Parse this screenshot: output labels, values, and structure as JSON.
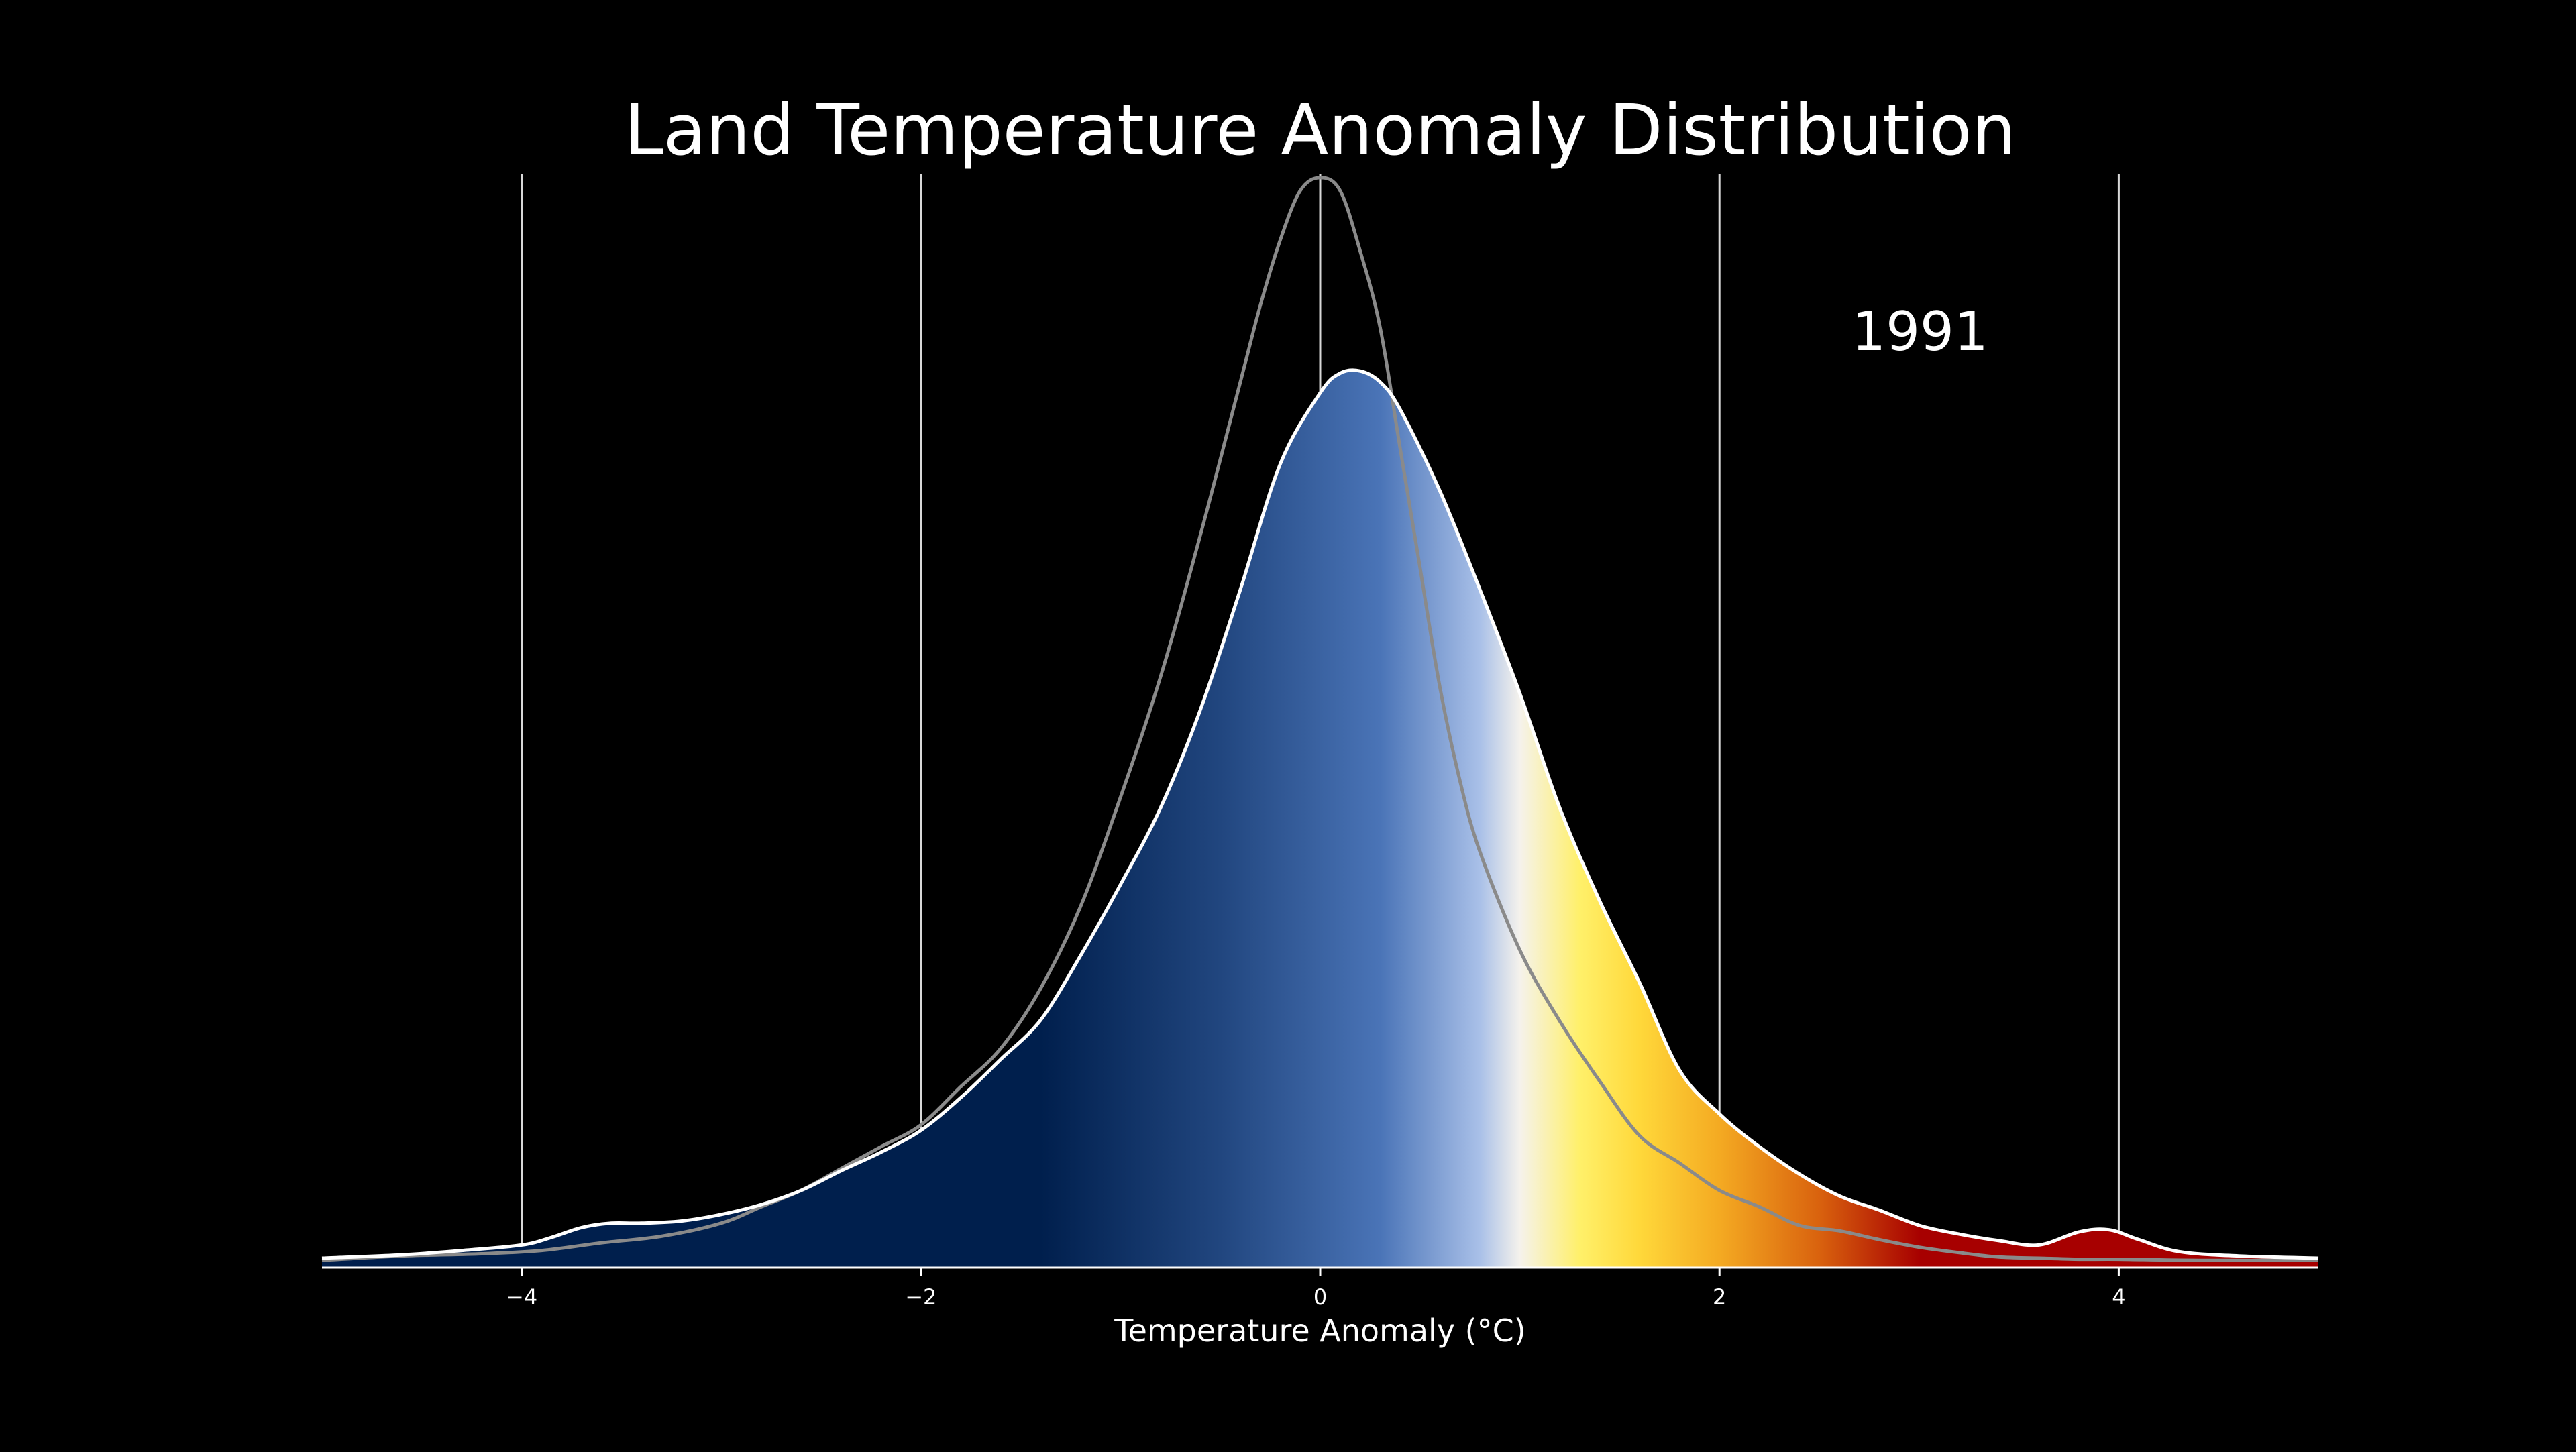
{
  "chart_data": {
    "type": "area",
    "title": "Land Temperature Anomaly Distribution",
    "xlabel": "Temperature Anomaly (°C)",
    "ylabel": "",
    "annotation": "1991",
    "xlim": [
      -5,
      5
    ],
    "ylim": [
      0,
      1.0
    ],
    "grid": "vertical lines at major ticks",
    "xticks": [
      {
        "value": -4,
        "label": "−4"
      },
      {
        "value": -2,
        "label": "−2"
      },
      {
        "value": 0,
        "label": "0"
      },
      {
        "value": 2,
        "label": "2"
      },
      {
        "value": 4,
        "label": "4"
      }
    ],
    "series": [
      {
        "role": "current-year-distribution",
        "fill": "diverging-gradient",
        "stroke": "#ffffff",
        "x": [
          -5.0,
          -4.6,
          -4.3,
          -4.0,
          -3.85,
          -3.7,
          -3.55,
          -3.4,
          -3.2,
          -3.0,
          -2.8,
          -2.6,
          -2.4,
          -2.2,
          -2.0,
          -1.8,
          -1.6,
          -1.4,
          -1.2,
          -1.0,
          -0.8,
          -0.6,
          -0.4,
          -0.2,
          0.0,
          0.1,
          0.2,
          0.3,
          0.4,
          0.6,
          0.8,
          1.0,
          1.2,
          1.4,
          1.6,
          1.8,
          2.0,
          2.2,
          2.4,
          2.6,
          2.8,
          3.0,
          3.2,
          3.4,
          3.6,
          3.8,
          3.95,
          4.1,
          4.3,
          4.6,
          5.0
        ],
        "y": [
          0.008,
          0.011,
          0.015,
          0.02,
          0.027,
          0.036,
          0.04,
          0.04,
          0.042,
          0.048,
          0.057,
          0.07,
          0.088,
          0.105,
          0.125,
          0.155,
          0.19,
          0.226,
          0.285,
          0.35,
          0.42,
          0.51,
          0.62,
          0.735,
          0.8,
          0.818,
          0.82,
          0.81,
          0.785,
          0.71,
          0.62,
          0.525,
          0.42,
          0.335,
          0.26,
          0.18,
          0.14,
          0.11,
          0.085,
          0.065,
          0.052,
          0.038,
          0.03,
          0.024,
          0.02,
          0.032,
          0.034,
          0.025,
          0.014,
          0.01,
          0.008
        ]
      },
      {
        "role": "baseline-distribution",
        "fill": "none",
        "stroke": "#8a8a8a",
        "x": [
          -5.0,
          -4.6,
          -4.2,
          -3.9,
          -3.6,
          -3.3,
          -3.0,
          -2.8,
          -2.6,
          -2.4,
          -2.2,
          -2.0,
          -1.8,
          -1.6,
          -1.4,
          -1.2,
          -1.0,
          -0.8,
          -0.6,
          -0.4,
          -0.3,
          -0.2,
          -0.1,
          0.0,
          0.1,
          0.2,
          0.3,
          0.4,
          0.5,
          0.6,
          0.7,
          0.8,
          1.0,
          1.2,
          1.4,
          1.6,
          1.8,
          2.0,
          2.2,
          2.4,
          2.6,
          2.8,
          3.0,
          3.2,
          3.4,
          3.6,
          3.8,
          4.0,
          4.4,
          5.0
        ],
        "y": [
          0.006,
          0.01,
          0.012,
          0.015,
          0.022,
          0.028,
          0.04,
          0.055,
          0.07,
          0.09,
          0.11,
          0.13,
          0.165,
          0.2,
          0.255,
          0.33,
          0.43,
          0.54,
          0.67,
          0.81,
          0.88,
          0.94,
          0.985,
          0.997,
          0.985,
          0.93,
          0.86,
          0.75,
          0.64,
          0.53,
          0.445,
          0.38,
          0.29,
          0.225,
          0.17,
          0.12,
          0.095,
          0.07,
          0.055,
          0.038,
          0.033,
          0.025,
          0.018,
          0.013,
          0.009,
          0.008,
          0.007,
          0.007,
          0.006,
          0.006
        ]
      }
    ],
    "colormap": [
      "#001f4d",
      "#001f4d",
      "#21467f",
      "#4a74b7",
      "#a9c0e8",
      "#f5f2ec",
      "#fff06a",
      "#ffd83a",
      "#f4aa22",
      "#d9620e",
      "#a70000",
      "#a70000"
    ],
    "colormap_range": [
      -5,
      5
    ]
  }
}
